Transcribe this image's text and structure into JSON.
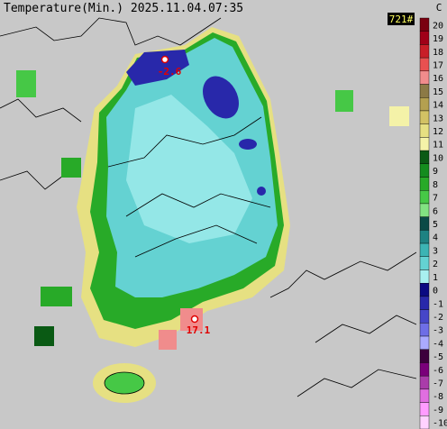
{
  "header": {
    "title": "Temperature(Min.) 2025.11.04.07:35",
    "station_count": "721#"
  },
  "legend": {
    "unit": "C",
    "ticks": [
      {
        "value": 20,
        "color": "#7a0010"
      },
      {
        "value": 19,
        "color": "#a00018"
      },
      {
        "value": 18,
        "color": "#c81e28"
      },
      {
        "value": 17,
        "color": "#e85050"
      },
      {
        "value": 16,
        "color": "#f08c8c"
      },
      {
        "value": 15,
        "color": "#8c7a46"
      },
      {
        "value": 14,
        "color": "#b4a050"
      },
      {
        "value": 13,
        "color": "#d2c264"
      },
      {
        "value": 12,
        "color": "#e6e082"
      },
      {
        "value": 11,
        "color": "#f4f2a8"
      },
      {
        "value": 10,
        "color": "#0a5a14"
      },
      {
        "value": 9,
        "color": "#148c1e"
      },
      {
        "value": 8,
        "color": "#28aa28"
      },
      {
        "value": 7,
        "color": "#46c846"
      },
      {
        "value": 6,
        "color": "#82e282"
      },
      {
        "value": 5,
        "color": "#0a4a46"
      },
      {
        "value": 4,
        "color": "#1e8282"
      },
      {
        "value": 3,
        "color": "#3cb4b4"
      },
      {
        "value": 2,
        "color": "#64d2d2"
      },
      {
        "value": 1,
        "color": "#a8f0f0"
      },
      {
        "value": 0,
        "color": "#0a0a82"
      },
      {
        "value": -1,
        "color": "#2828aa"
      },
      {
        "value": -2,
        "color": "#4646c8"
      },
      {
        "value": -3,
        "color": "#6e6ee6"
      },
      {
        "value": -4,
        "color": "#aaaaff"
      },
      {
        "value": -5,
        "color": "#3c003c"
      },
      {
        "value": -6,
        "color": "#7a007a"
      },
      {
        "value": -7,
        "color": "#aa3caa"
      },
      {
        "value": -8,
        "color": "#e06ee0"
      },
      {
        "value": -9,
        "color": "#ff9cff"
      },
      {
        "value": -10,
        "color": "#ffd2ff"
      }
    ]
  },
  "markers": [
    {
      "label": "-2.6"
    },
    {
      "label": "17.1"
    }
  ]
}
